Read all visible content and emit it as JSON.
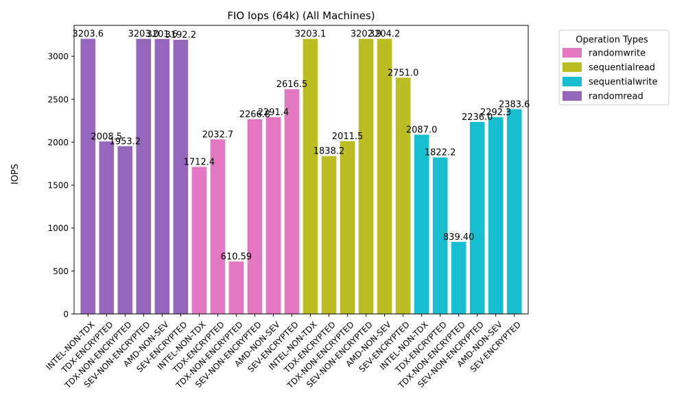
{
  "chart_data": {
    "type": "bar",
    "title": "FIO Iops (64k) (All Machines)",
    "xlabel": "",
    "ylabel": "IOPS",
    "ylim": [
      0,
      3360
    ],
    "yticks": [
      0,
      500,
      1000,
      1500,
      2000,
      2500,
      3000
    ],
    "grid": false,
    "legend": {
      "title": "Operation Types",
      "placement": "outside-top-right",
      "entries": [
        {
          "label": "randomwrite",
          "color": "#e377c2"
        },
        {
          "label": "sequentialread",
          "color": "#bcbd22"
        },
        {
          "label": "sequentialwrite",
          "color": "#17becf"
        },
        {
          "label": "randomread",
          "color": "#9467bd"
        }
      ]
    },
    "bars": [
      {
        "category": "INTEL-NON-TDX",
        "series": "randomread",
        "value": 3203.6,
        "label": "3203.6",
        "color": "#9467bd"
      },
      {
        "category": "TDX-ENCRYPTED",
        "series": "randomread",
        "value": 2008.5,
        "label": "2008.5",
        "color": "#9467bd"
      },
      {
        "category": "TDX-NON-ENCRYPTED",
        "series": "randomread",
        "value": 1953.2,
        "label": "1953.2",
        "color": "#9467bd"
      },
      {
        "category": "SEV-NON-ENCRYPTED",
        "series": "randomread",
        "value": 3203.0,
        "label": "3203.0",
        "color": "#9467bd"
      },
      {
        "category": "AMD-NON-SEV",
        "series": "randomread",
        "value": 3201.6,
        "label": "3201.6",
        "color": "#9467bd"
      },
      {
        "category": "SEV-ENCRYPTED",
        "series": "randomread",
        "value": 3192.2,
        "label": "3192.2",
        "color": "#9467bd"
      },
      {
        "category": "INTEL-NON-TDX",
        "series": "randomwrite",
        "value": 1712.4,
        "label": "1712.4",
        "color": "#e377c2"
      },
      {
        "category": "TDX-ENCRYPTED",
        "series": "randomwrite",
        "value": 2032.7,
        "label": "2032.7",
        "color": "#e377c2"
      },
      {
        "category": "TDX-NON-ENCRYPTED",
        "series": "randomwrite",
        "value": 610.59,
        "label": "610.59",
        "color": "#e377c2"
      },
      {
        "category": "SEV-NON-ENCRYPTED",
        "series": "randomwrite",
        "value": 2266.8,
        "label": "2266.8",
        "color": "#e377c2"
      },
      {
        "category": "AMD-NON-SEV",
        "series": "randomwrite",
        "value": 2291.4,
        "label": "2291.4",
        "color": "#e377c2"
      },
      {
        "category": "SEV-ENCRYPTED",
        "series": "randomwrite",
        "value": 2616.5,
        "label": "2616.5",
        "color": "#e377c2"
      },
      {
        "category": "INTEL-NON-TDX",
        "series": "sequentialread",
        "value": 3203.1,
        "label": "3203.1",
        "color": "#bcbd22"
      },
      {
        "category": "TDX-ENCRYPTED",
        "series": "sequentialread",
        "value": 1838.2,
        "label": "1838.2",
        "color": "#bcbd22"
      },
      {
        "category": "TDX-NON-ENCRYPTED",
        "series": "sequentialread",
        "value": 2011.5,
        "label": "2011.5",
        "color": "#bcbd22"
      },
      {
        "category": "SEV-NON-ENCRYPTED",
        "series": "sequentialread",
        "value": 3202.9,
        "label": "3202.9",
        "color": "#bcbd22"
      },
      {
        "category": "AMD-NON-SEV",
        "series": "sequentialread",
        "value": 3204.2,
        "label": "3204.2",
        "color": "#bcbd22"
      },
      {
        "category": "SEV-ENCRYPTED",
        "series": "sequentialread",
        "value": 2751.0,
        "label": "2751.0",
        "color": "#bcbd22"
      },
      {
        "category": "INTEL-NON-TDX",
        "series": "sequentialwrite",
        "value": 2087.0,
        "label": "2087.0",
        "color": "#17becf"
      },
      {
        "category": "TDX-ENCRYPTED",
        "series": "sequentialwrite",
        "value": 1822.2,
        "label": "1822.2",
        "color": "#17becf"
      },
      {
        "category": "TDX-NON-ENCRYPTED",
        "series": "sequentialwrite",
        "value": 839.4,
        "label": "839.40",
        "color": "#17becf"
      },
      {
        "category": "SEV-NON-ENCRYPTED",
        "series": "sequentialwrite",
        "value": 2236.0,
        "label": "2236.0",
        "color": "#17becf"
      },
      {
        "category": "AMD-NON-SEV",
        "series": "sequentialwrite",
        "value": 2292.3,
        "label": "2292.3",
        "color": "#17becf"
      },
      {
        "category": "SEV-ENCRYPTED",
        "series": "sequentialwrite",
        "value": 2383.6,
        "label": "2383.6",
        "color": "#17becf"
      }
    ]
  }
}
